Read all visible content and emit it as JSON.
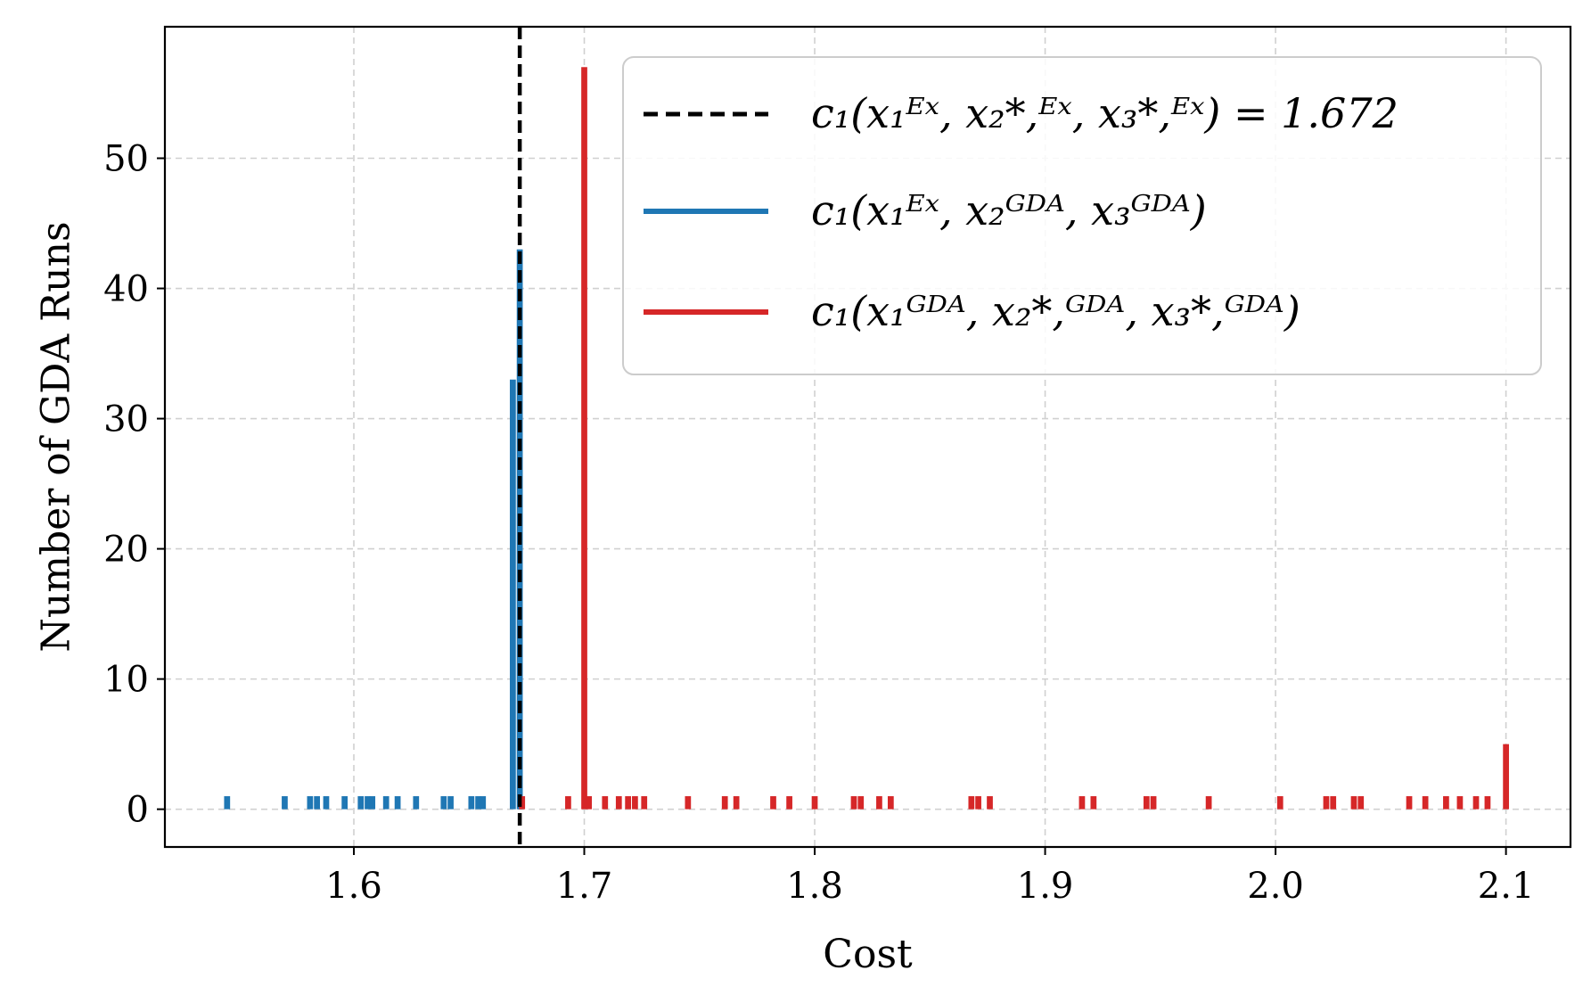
{
  "chart_data": {
    "type": "bar",
    "title": "",
    "xlabel": "Cost",
    "ylabel": "Number of GDA Runs",
    "xlim": [
      1.518,
      2.128
    ],
    "ylim": [
      -2.9,
      60.1
    ],
    "xticks": [
      1.6,
      1.7,
      1.8,
      1.9,
      2.0,
      2.1
    ],
    "xtick_labels": [
      "1.6",
      "1.7",
      "1.8",
      "1.9",
      "2.0",
      "2.1"
    ],
    "yticks": [
      0,
      10,
      20,
      30,
      40,
      50
    ],
    "ytick_labels": [
      "0",
      "10",
      "20",
      "30",
      "40",
      "50"
    ],
    "grid": true,
    "legend_position": "top-right",
    "bar_width": 0.0026,
    "reference_line": {
      "x": 1.672,
      "label": "c₁(x₁ᴱˣ, x₂*,ᴱˣ, x₃*,ᴱˣ) = 1.672",
      "style": "dashed",
      "color": "#000000"
    },
    "series": [
      {
        "name": "c₁(x₁ᴱˣ, x₂ᴳᴰᴬ, x₃ᴳᴰᴬ)",
        "color": "#1f77b4",
        "x": [
          1.545,
          1.57,
          1.581,
          1.584,
          1.588,
          1.596,
          1.603,
          1.606,
          1.608,
          1.614,
          1.619,
          1.627,
          1.639,
          1.642,
          1.651,
          1.654,
          1.656,
          1.669,
          1.672
        ],
        "values": [
          1,
          1,
          1,
          1,
          1,
          1,
          1,
          1,
          1,
          1,
          1,
          1,
          1,
          1,
          1,
          1,
          1,
          33,
          43
        ]
      },
      {
        "name": "c₁(x₁ᴳᴰᴬ, x₂*,ᴳᴰᴬ, x₃*,ᴳᴰᴬ)",
        "color": "#d62728",
        "x": [
          1.673,
          1.693,
          1.7,
          1.702,
          1.709,
          1.715,
          1.719,
          1.722,
          1.726,
          1.745,
          1.761,
          1.766,
          1.782,
          1.789,
          1.8,
          1.817,
          1.82,
          1.828,
          1.833,
          1.868,
          1.871,
          1.876,
          1.916,
          1.921,
          1.944,
          1.947,
          1.971,
          2.002,
          2.022,
          2.025,
          2.034,
          2.037,
          2.058,
          2.065,
          2.074,
          2.08,
          2.087,
          2.092,
          2.1
        ],
        "values": [
          1,
          1,
          57,
          1,
          1,
          1,
          1,
          1,
          1,
          1,
          1,
          1,
          1,
          1,
          1,
          1,
          1,
          1,
          1,
          1,
          1,
          1,
          1,
          1,
          1,
          1,
          1,
          1,
          1,
          1,
          1,
          1,
          1,
          1,
          1,
          1,
          1,
          1,
          5
        ]
      }
    ]
  }
}
